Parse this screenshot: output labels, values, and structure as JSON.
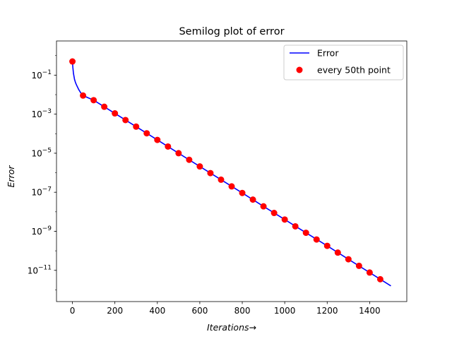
{
  "chart_data": {
    "type": "line",
    "title": "Semilog plot of error",
    "xlabel": "Iterations→",
    "ylabel": "Error",
    "y_scale": "log",
    "xlim": [
      -75,
      1575
    ],
    "ylim_exponent": [
      -12.6,
      0.75
    ],
    "x_ticks": [
      0,
      200,
      400,
      600,
      800,
      1000,
      1200,
      1400
    ],
    "y_ticks": [
      {
        "exp": -1,
        "label": "10^{-1}"
      },
      {
        "exp": -3,
        "label": "10^{-3}"
      },
      {
        "exp": -5,
        "label": "10^{-5}"
      },
      {
        "exp": -7,
        "label": "10^{-7}"
      },
      {
        "exp": -9,
        "label": "10^{-9}"
      },
      {
        "exp": -11,
        "label": "10^{-11}"
      }
    ],
    "legend": {
      "location": "upper right",
      "entries": [
        "Error",
        "every 50th point"
      ]
    },
    "series": [
      {
        "name": "Error",
        "style": "line",
        "color": "#0000ff",
        "x": [
          0,
          2,
          5,
          10,
          15,
          20,
          30,
          40,
          50,
          100,
          200,
          300,
          400,
          500,
          600,
          700,
          800,
          900,
          1000,
          1100,
          1200,
          1300,
          1400,
          1500
        ],
        "y": [
          0.5,
          0.25,
          0.12,
          0.06,
          0.04,
          0.03,
          0.018,
          0.012,
          0.009,
          0.0052,
          0.0011,
          0.00023,
          4.8e-05,
          1e-05,
          2.1e-06,
          4.4e-07,
          9.2e-08,
          1.9e-08,
          4e-09,
          8.4e-10,
          1.8e-10,
          3.7e-11,
          7.7e-12,
          1.6e-12
        ]
      },
      {
        "name": "every 50th point",
        "style": "marker",
        "color": "#ff0000",
        "x": [
          0,
          50,
          100,
          150,
          200,
          250,
          300,
          350,
          400,
          450,
          500,
          550,
          600,
          650,
          700,
          750,
          800,
          850,
          900,
          950,
          1000,
          1050,
          1100,
          1150,
          1200,
          1250,
          1300,
          1350,
          1400,
          1450
        ],
        "y": [
          0.5,
          0.009,
          0.0052,
          0.0024,
          0.0011,
          0.0005,
          0.00023,
          0.000105,
          4.8e-05,
          2.2e-05,
          1e-05,
          4.6e-06,
          2.1e-06,
          9.6e-07,
          4.4e-07,
          2e-07,
          9.2e-08,
          4.2e-08,
          1.9e-08,
          8.7e-09,
          4e-09,
          1.8e-09,
          8.4e-10,
          3.8e-10,
          1.8e-10,
          8.1e-11,
          3.7e-11,
          1.7e-11,
          7.7e-12,
          3.5e-12
        ]
      }
    ]
  }
}
